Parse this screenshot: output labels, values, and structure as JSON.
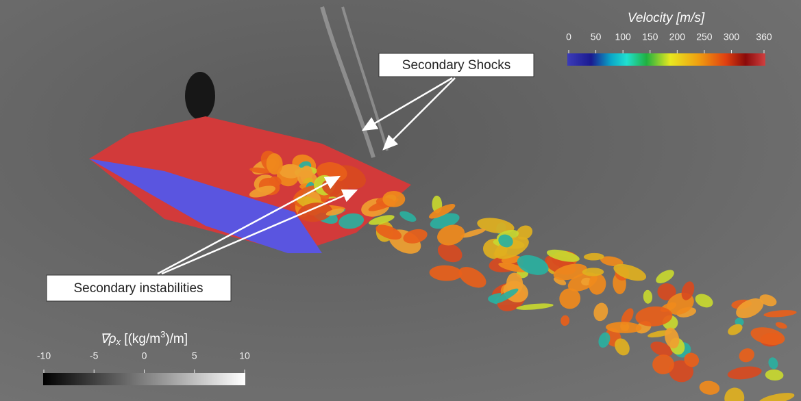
{
  "annotations": [
    "Secondary Shocks",
    "Secondary instabilities"
  ],
  "colorbars": [
    {
      "title": "Velocity [m/s]",
      "range": [
        0,
        360
      ],
      "ticks": [
        0,
        50,
        100,
        150,
        200,
        250,
        300,
        360
      ]
    },
    {
      "title": [
        "∇ρ",
        "x",
        " [(kg/m",
        "3",
        ")/m]"
      ],
      "range": [
        -10,
        10
      ],
      "ticks": [
        -10,
        -5,
        0,
        5,
        10
      ]
    }
  ]
}
